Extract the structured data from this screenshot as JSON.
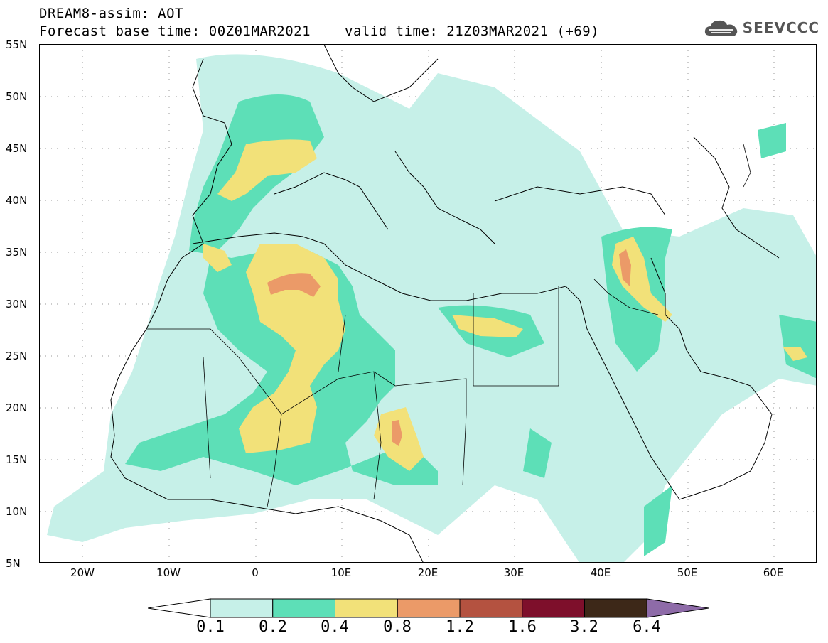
{
  "title": {
    "line1": "DREAM8-assim: AOT",
    "line2": "Forecast base time: 00Z01MAR2021",
    "line2b": "valid time: 21Z03MAR2021 (+69)"
  },
  "logo": {
    "text": "SEEVCCC",
    "icon": "cloud-icon"
  },
  "axes": {
    "lat_labels": [
      "55N",
      "50N",
      "45N",
      "40N",
      "35N",
      "30N",
      "25N",
      "20N",
      "15N",
      "10N",
      "5N"
    ],
    "lon_labels": [
      "20W",
      "10W",
      "0",
      "10E",
      "20E",
      "30E",
      "40E",
      "50E",
      "60E"
    ]
  },
  "colorbar": {
    "labels": [
      "0.1",
      "0.2",
      "0.4",
      "0.8",
      "1.2",
      "1.6",
      "3.2",
      "6.4"
    ],
    "colors": [
      "#ffffff",
      "#c6f0e8",
      "#5ddfb7",
      "#f2e179",
      "#eb9a68",
      "#b45240",
      "#7e0f2b",
      "#3d2818",
      "#8e6ba8"
    ]
  },
  "chart_data": {
    "type": "heatmap",
    "variable": "AOT",
    "lat_range": [
      5,
      55
    ],
    "lon_range": [
      -25,
      65
    ],
    "levels": [
      0.1,
      0.2,
      0.4,
      0.8,
      1.2,
      1.6,
      3.2,
      6.4
    ]
  }
}
